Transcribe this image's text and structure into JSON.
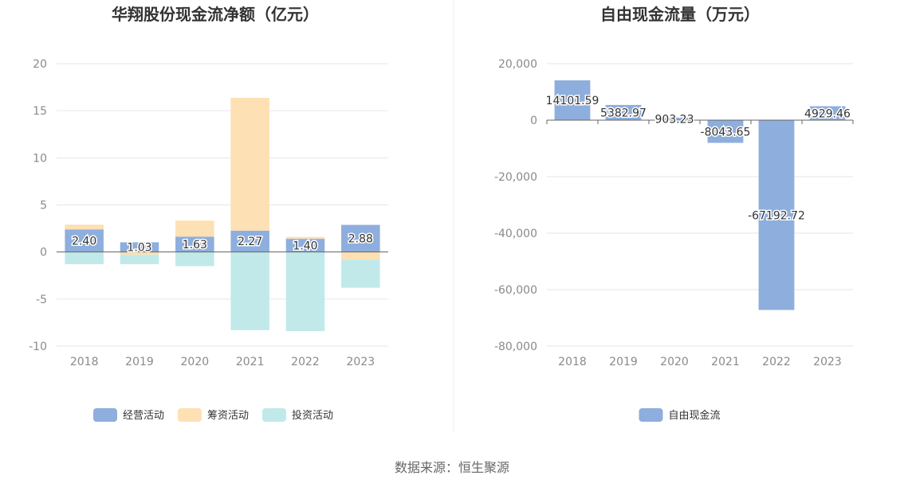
{
  "source_text": "数据来源：恒生聚源",
  "chart_data": [
    {
      "type": "bar",
      "stacked": true,
      "title": "华翔股份现金流净额（亿元）",
      "categories": [
        "2018",
        "2019",
        "2020",
        "2021",
        "2022",
        "2023"
      ],
      "ylim": [
        -10,
        20
      ],
      "yticks": [
        "20",
        "15",
        "10",
        "5",
        "0",
        "-5",
        "-10"
      ],
      "grid": true,
      "legend_position": "bottom",
      "series": [
        {
          "name": "经营活动",
          "color": "#8eaedd",
          "values": [
            2.4,
            1.03,
            1.63,
            2.27,
            1.4,
            2.88
          ],
          "labels": [
            "2.40",
            "1.03",
            "1.63",
            "2.27",
            "1.40",
            "2.88"
          ]
        },
        {
          "name": "筹资活动",
          "color": "#fde0b3",
          "values": [
            0.5,
            -0.3,
            1.7,
            14.1,
            0.2,
            -0.8
          ]
        },
        {
          "name": "投资活动",
          "color": "#c1e9ea",
          "values": [
            -1.3,
            -1.0,
            -1.5,
            -8.3,
            -8.4,
            -3.0
          ]
        }
      ]
    },
    {
      "type": "bar",
      "title": "自由现金流量（万元）",
      "categories": [
        "2018",
        "2019",
        "2020",
        "2021",
        "2022",
        "2023"
      ],
      "ylim": [
        -80000,
        20000
      ],
      "yticks": [
        "20,000",
        "0",
        "-20,000",
        "-40,000",
        "-60,000",
        "-80,000"
      ],
      "grid": true,
      "legend_position": "bottom",
      "series": [
        {
          "name": "自由现金流",
          "color": "#8eaedd",
          "values": [
            14101.59,
            5382.97,
            903.23,
            -8043.65,
            -67192.72,
            4929.46
          ],
          "labels": [
            "14101.59",
            "5382.97",
            "903.23",
            "-8043.65",
            "-67192.72",
            "4929.46"
          ]
        }
      ]
    }
  ]
}
